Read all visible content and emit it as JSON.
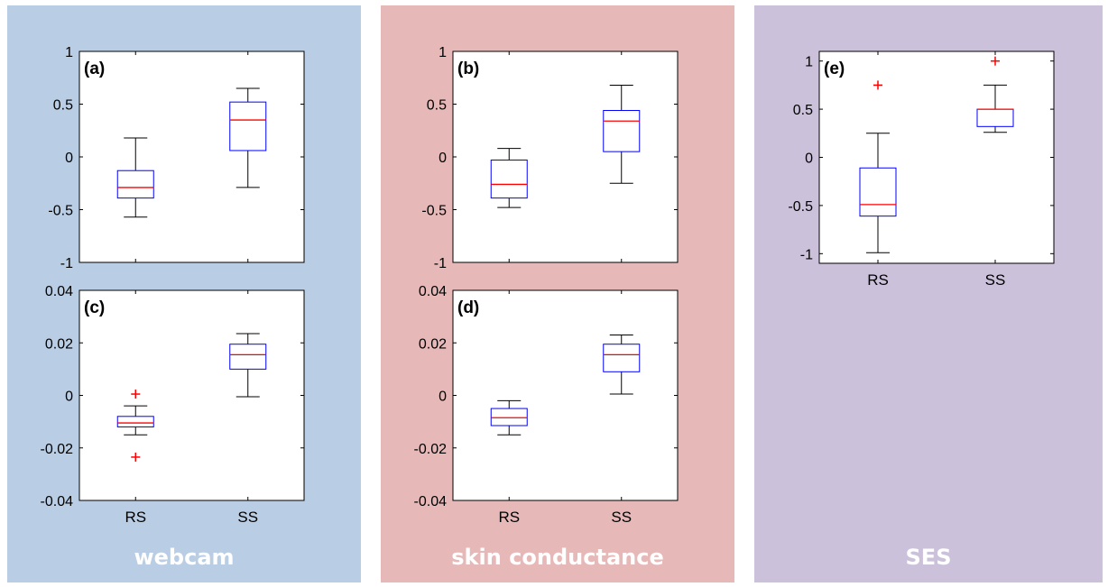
{
  "panels": {
    "webcam": {
      "label": "webcam"
    },
    "skin": {
      "label": "skin conductance"
    },
    "ses": {
      "label": "SES"
    }
  },
  "colors": {
    "box": "#0000ff",
    "median": "#ff0000",
    "whisker": "#000000",
    "outlier": "#ff0000"
  },
  "chart_data": [
    {
      "type": "box",
      "panel_label": "(a)",
      "categories": [
        "RS",
        "SS"
      ],
      "ylim": [
        -1,
        1
      ],
      "yticks": [
        -1,
        -0.5,
        0,
        0.5,
        1
      ],
      "ytick_labels": [
        "-1",
        "-0.5",
        "0",
        "0.5",
        "1"
      ],
      "boxes": [
        {
          "category": "RS",
          "whisker_low": -0.57,
          "q1": -0.39,
          "median": -0.29,
          "q3": -0.13,
          "whisker_high": 0.18,
          "outliers": []
        },
        {
          "category": "SS",
          "whisker_low": -0.29,
          "q1": 0.06,
          "median": 0.35,
          "q3": 0.52,
          "whisker_high": 0.65,
          "outliers": []
        }
      ]
    },
    {
      "type": "box",
      "panel_label": "(b)",
      "categories": [
        "RS",
        "SS"
      ],
      "ylim": [
        -1,
        1
      ],
      "yticks": [
        -1,
        -0.5,
        0,
        0.5,
        1
      ],
      "ytick_labels": [
        "-1",
        "-0.5",
        "0",
        "0.5",
        "1"
      ],
      "boxes": [
        {
          "category": "RS",
          "whisker_low": -0.48,
          "q1": -0.39,
          "median": -0.26,
          "q3": -0.03,
          "whisker_high": 0.08,
          "outliers": []
        },
        {
          "category": "SS",
          "whisker_low": -0.25,
          "q1": 0.05,
          "median": 0.34,
          "q3": 0.44,
          "whisker_high": 0.68,
          "outliers": []
        }
      ]
    },
    {
      "type": "box",
      "panel_label": "(c)",
      "categories": [
        "RS",
        "SS"
      ],
      "ylim": [
        -0.04,
        0.04
      ],
      "yticks": [
        -0.04,
        -0.02,
        0,
        0.02,
        0.04
      ],
      "ytick_labels": [
        "-0.04",
        "-0.02",
        "0",
        "0.02",
        "0.04"
      ],
      "boxes": [
        {
          "category": "RS",
          "whisker_low": -0.015,
          "q1": -0.012,
          "median": -0.0105,
          "q3": -0.008,
          "whisker_high": -0.004,
          "outliers": [
            0.0005,
            -0.0235
          ]
        },
        {
          "category": "SS",
          "whisker_low": -0.0005,
          "q1": 0.01,
          "median": 0.0155,
          "q3": 0.0195,
          "whisker_high": 0.0235,
          "outliers": []
        }
      ]
    },
    {
      "type": "box",
      "panel_label": "(d)",
      "categories": [
        "RS",
        "SS"
      ],
      "ylim": [
        -0.04,
        0.04
      ],
      "yticks": [
        -0.04,
        -0.02,
        0,
        0.02,
        0.04
      ],
      "ytick_labels": [
        "-0.04",
        "-0.02",
        "0",
        "0.02",
        "0.04"
      ],
      "boxes": [
        {
          "category": "RS",
          "whisker_low": -0.015,
          "q1": -0.0115,
          "median": -0.0085,
          "q3": -0.005,
          "whisker_high": -0.002,
          "outliers": []
        },
        {
          "category": "SS",
          "whisker_low": 0.0005,
          "q1": 0.009,
          "median": 0.0155,
          "q3": 0.0195,
          "whisker_high": 0.023,
          "outliers": []
        }
      ]
    },
    {
      "type": "box",
      "panel_label": "(e)",
      "categories": [
        "RS",
        "SS"
      ],
      "ylim": [
        -1.1,
        1.1
      ],
      "yticks": [
        -1,
        -0.5,
        0,
        0.5,
        1
      ],
      "ytick_labels": [
        "-1",
        "-0.5",
        "0",
        "0.5",
        "1"
      ],
      "boxes": [
        {
          "category": "RS",
          "whisker_low": -0.99,
          "q1": -0.61,
          "median": -0.49,
          "q3": -0.11,
          "whisker_high": 0.25,
          "outliers": [
            0.75
          ]
        },
        {
          "category": "SS",
          "whisker_low": 0.26,
          "q1": 0.32,
          "median": 0.5,
          "q3": 0.5,
          "whisker_high": 0.75,
          "outliers": [
            1.0
          ]
        }
      ]
    }
  ]
}
